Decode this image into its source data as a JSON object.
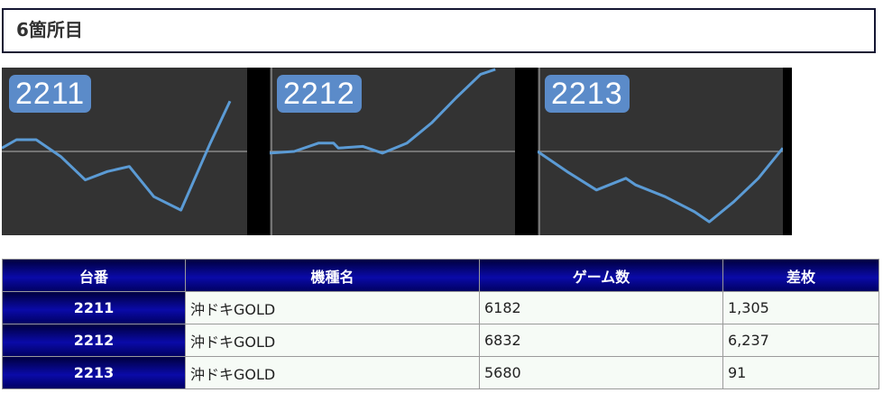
{
  "section": {
    "title": "6箇所目"
  },
  "graphs": [
    {
      "label": "2211",
      "points": [
        [
          0,
          0.52
        ],
        [
          0.06,
          0.57
        ],
        [
          0.14,
          0.57
        ],
        [
          0.24,
          0.47
        ],
        [
          0.34,
          0.33
        ],
        [
          0.43,
          0.38
        ],
        [
          0.52,
          0.41
        ],
        [
          0.62,
          0.23
        ],
        [
          0.73,
          0.15
        ],
        [
          0.85,
          0.55
        ],
        [
          0.93,
          0.8
        ]
      ]
    },
    {
      "label": "2212",
      "points": [
        [
          0,
          0.49
        ],
        [
          0.1,
          0.5
        ],
        [
          0.2,
          0.55
        ],
        [
          0.26,
          0.55
        ],
        [
          0.28,
          0.52
        ],
        [
          0.38,
          0.53
        ],
        [
          0.46,
          0.49
        ],
        [
          0.56,
          0.55
        ],
        [
          0.66,
          0.67
        ],
        [
          0.76,
          0.82
        ],
        [
          0.86,
          0.96
        ],
        [
          0.92,
          1.03
        ]
      ]
    },
    {
      "label": "2213",
      "points": [
        [
          0,
          0.5
        ],
        [
          0.12,
          0.38
        ],
        [
          0.24,
          0.27
        ],
        [
          0.36,
          0.34
        ],
        [
          0.4,
          0.3
        ],
        [
          0.52,
          0.23
        ],
        [
          0.64,
          0.14
        ],
        [
          0.7,
          0.08
        ],
        [
          0.8,
          0.2
        ],
        [
          0.9,
          0.34
        ],
        [
          1,
          0.52
        ]
      ]
    }
  ],
  "table": {
    "headers": [
      "台番",
      "機種名",
      "ゲーム数",
      "差枚"
    ],
    "rows": [
      {
        "number": "2211",
        "machine": "沖ドキGOLD",
        "games": "6182",
        "diff": "1,305"
      },
      {
        "number": "2212",
        "machine": "沖ドキGOLD",
        "games": "6832",
        "diff": "6,237"
      },
      {
        "number": "2213",
        "machine": "沖ドキGOLD",
        "games": "5680",
        "diff": "91"
      }
    ]
  }
}
